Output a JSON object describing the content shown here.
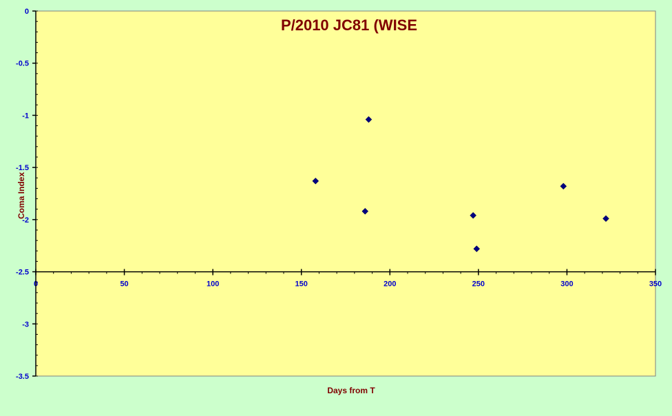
{
  "chart_data": {
    "type": "scatter",
    "title": "P/2010 JC81 (WISE",
    "xlabel": "Days  from T",
    "ylabel": "Coma Index",
    "xlim": [
      0,
      350
    ],
    "ylim": [
      -3.5,
      0
    ],
    "x_ticks": [
      0,
      50,
      100,
      150,
      200,
      250,
      300,
      350
    ],
    "y_ticks": [
      0,
      -0.5,
      -1,
      -1.5,
      -2,
      -2.5,
      -3,
      -3.5
    ],
    "x_tick_labels": [
      "0",
      "50",
      "100",
      "150",
      "200",
      "250",
      "300",
      "350"
    ],
    "y_tick_labels": [
      "0",
      "-0.5",
      "-1",
      "-1.5",
      "-2",
      "-2.5",
      "-3",
      "-3.5"
    ],
    "x_axis_crosses_at": -2.5,
    "grid": false,
    "series": [
      {
        "points": [
          {
            "x": 158,
            "y": -1.63
          },
          {
            "x": 186,
            "y": -1.92
          },
          {
            "x": 188,
            "y": -1.04
          },
          {
            "x": 247,
            "y": -1.96
          },
          {
            "x": 249,
            "y": -2.28
          },
          {
            "x": 298,
            "y": -1.68
          },
          {
            "x": 322,
            "y": -1.99
          }
        ]
      }
    ],
    "colors": {
      "page_background": "#ccffcc",
      "plot_background": "#ffff99",
      "marker": "#000080",
      "title": "#800000",
      "tick_labels": "#0000cc",
      "axes": "#000000"
    }
  }
}
